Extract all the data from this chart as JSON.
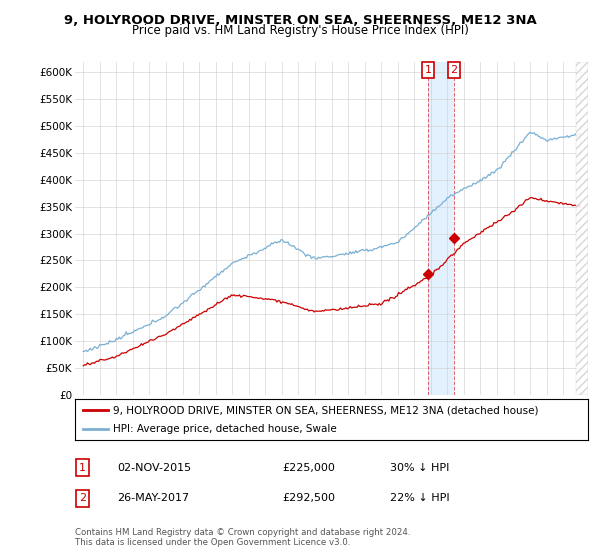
{
  "title": "9, HOLYROOD DRIVE, MINSTER ON SEA, SHEERNESS, ME12 3NA",
  "subtitle": "Price paid vs. HM Land Registry's House Price Index (HPI)",
  "legend_line1": "9, HOLYROOD DRIVE, MINSTER ON SEA, SHEERNESS, ME12 3NA (detached house)",
  "legend_line2": "HPI: Average price, detached house, Swale",
  "sale1_date": "02-NOV-2015",
  "sale1_price": "£225,000",
  "sale1_note": "30% ↓ HPI",
  "sale2_date": "26-MAY-2017",
  "sale2_price": "£292,500",
  "sale2_note": "22% ↓ HPI",
  "footer": "Contains HM Land Registry data © Crown copyright and database right 2024.\nThis data is licensed under the Open Government Licence v3.0.",
  "hpi_color": "#7ab0d4",
  "sale_color": "#cc0000",
  "sale1_x": 2015.84,
  "sale2_x": 2017.4,
  "sale1_y": 225000,
  "sale2_y": 292500,
  "ylim_min": 0,
  "ylim_max": 620000,
  "xlim_min": 1994.5,
  "xlim_max": 2025.5,
  "yticks": [
    0,
    50000,
    100000,
    150000,
    200000,
    250000,
    300000,
    350000,
    400000,
    450000,
    500000,
    550000,
    600000
  ],
  "xticks": [
    1995,
    1996,
    1997,
    1998,
    1999,
    2000,
    2001,
    2002,
    2003,
    2004,
    2005,
    2006,
    2007,
    2008,
    2009,
    2010,
    2011,
    2012,
    2013,
    2014,
    2015,
    2016,
    2017,
    2018,
    2019,
    2020,
    2021,
    2022,
    2023,
    2024,
    2025
  ]
}
